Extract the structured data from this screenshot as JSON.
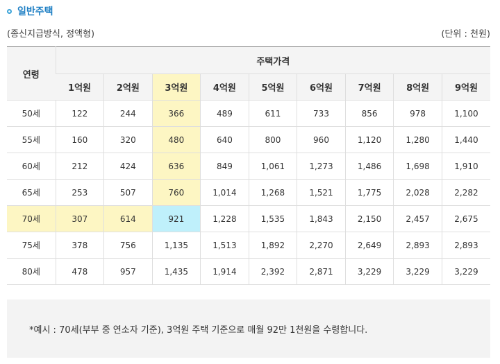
{
  "heading": {
    "title": "일반주택"
  },
  "subheader": {
    "condition": "(종신지급방식, 정액형)",
    "unit": "(단위 : 천원)"
  },
  "table": {
    "age_header": "연령",
    "price_group_header": "주택가격",
    "price_columns": [
      "1억원",
      "2억원",
      "3억원",
      "4억원",
      "5억원",
      "6억원",
      "7억원",
      "8억원",
      "9억원"
    ],
    "rows": [
      {
        "age": "50세",
        "values": [
          "122",
          "244",
          "366",
          "489",
          "611",
          "733",
          "856",
          "978",
          "1,100"
        ]
      },
      {
        "age": "55세",
        "values": [
          "160",
          "320",
          "480",
          "640",
          "800",
          "960",
          "1,120",
          "1,280",
          "1,440"
        ]
      },
      {
        "age": "60세",
        "values": [
          "212",
          "424",
          "636",
          "849",
          "1,061",
          "1,273",
          "1,486",
          "1,698",
          "1,910"
        ]
      },
      {
        "age": "65세",
        "values": [
          "253",
          "507",
          "760",
          "1,014",
          "1,268",
          "1,521",
          "1,775",
          "2,028",
          "2,282"
        ]
      },
      {
        "age": "70세",
        "values": [
          "307",
          "614",
          "921",
          "1,228",
          "1,535",
          "1,843",
          "2,150",
          "2,457",
          "2,675"
        ]
      },
      {
        "age": "75세",
        "values": [
          "378",
          "756",
          "1,135",
          "1,513",
          "1,892",
          "2,270",
          "2,649",
          "2,893",
          "2,893"
        ]
      },
      {
        "age": "80세",
        "values": [
          "478",
          "957",
          "1,435",
          "1,914",
          "2,392",
          "2,871",
          "3,229",
          "3,229",
          "3,229"
        ]
      }
    ],
    "highlight_colors": {
      "row_column": "#fdf6c3",
      "intersection": "#bff0fb"
    }
  },
  "note": {
    "text": "*예시 : 70세(부부 중 연소자 기준), 3억원 주택 기준으로 매월 92만 1천원을 수령합니다."
  }
}
